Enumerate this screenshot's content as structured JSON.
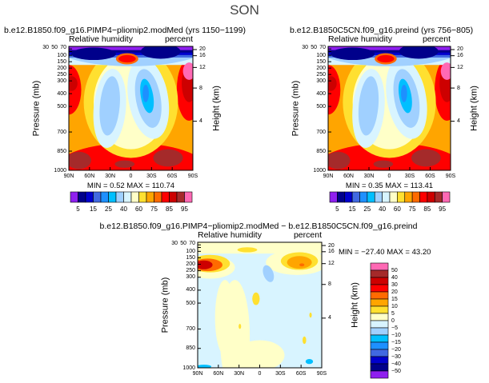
{
  "title": "SON",
  "chart_data": [
    {
      "type": "heatmap",
      "title": "b.e12.B1850.f09_g16.PIMP4−pliomip2.modMed (yrs 1150−1199)",
      "left_label": "Relative humidity",
      "right_label": "percent",
      "ylabel": "Pressure (mb)",
      "y2label": "Height (km)",
      "xticks": [
        "90N",
        "60N",
        "30N",
        "0",
        "30S",
        "60S",
        "90S"
      ],
      "yticks": [
        "30",
        "50",
        "70",
        "100",
        "150",
        "200",
        "250",
        "300",
        "400",
        "500",
        "700",
        "850",
        "1000"
      ],
      "y2ticks": [
        "20",
        "16",
        "12",
        "8",
        "4"
      ],
      "ylim": [
        30,
        1000
      ],
      "minmax": "MIN =    0.52   MAX = 110.74",
      "min": 0.52,
      "max": 110.74,
      "colorbar_labels": [
        "5",
        "15",
        "25",
        "40",
        "60",
        "75",
        "85",
        "95"
      ]
    },
    {
      "type": "heatmap",
      "title": "b.e12.B1850C5CN.f09_g16.preind (yrs 756−805)",
      "left_label": "Relative humidity",
      "right_label": "percent",
      "ylabel": "Pressure (mb)",
      "y2label": "Height (km)",
      "xticks": [
        "90N",
        "60N",
        "30N",
        "0",
        "30S",
        "60S",
        "90S"
      ],
      "yticks": [
        "30",
        "50",
        "70",
        "100",
        "150",
        "200",
        "250",
        "300",
        "400",
        "500",
        "700",
        "850",
        "1000"
      ],
      "y2ticks": [
        "20",
        "16",
        "12",
        "8",
        "4"
      ],
      "ylim": [
        30,
        1000
      ],
      "minmax": "MIN =    0.35   MAX = 113.41",
      "min": 0.35,
      "max": 113.41,
      "colorbar_labels": [
        "5",
        "15",
        "25",
        "40",
        "60",
        "75",
        "85",
        "95"
      ]
    },
    {
      "type": "heatmap",
      "title": "b.e12.B1850.f09_g16.PIMP4−pliomip2.modMed − b.e12.B1850C5CN.f09_g16.preind",
      "left_label": "Relative humidity",
      "right_label": "percent",
      "ylabel": "Pressure (mb)",
      "y2label": "Height (km)",
      "xticks": [
        "90N",
        "60N",
        "30N",
        "0",
        "30S",
        "60S",
        "90S"
      ],
      "yticks": [
        "30",
        "50",
        "70",
        "100",
        "150",
        "200",
        "250",
        "300",
        "400",
        "500",
        "700",
        "850",
        "1000"
      ],
      "y2ticks": [
        "20",
        "16",
        "12",
        "8",
        "4"
      ],
      "ylim": [
        30,
        1000
      ],
      "minmax": "MIN = −27.40   MAX =  43.20",
      "min": -27.4,
      "max": 43.2,
      "colorbar_labels": [
        "50",
        "40",
        "30",
        "20",
        "15",
        "10",
        "5",
        "0",
        "−5",
        "−10",
        "−15",
        "−20",
        "−30",
        "−40",
        "−50"
      ]
    }
  ],
  "colors": {
    "abs": [
      "#8f1fef",
      "#00008b",
      "#0000cd",
      "#4169e1",
      "#1e90ff",
      "#00bfff",
      "#a0d0ff",
      "#d8f4ff",
      "#ffffc8",
      "#ffe030",
      "#ffa500",
      "#ff6a00",
      "#ff0000",
      "#cd0000",
      "#a52a2a",
      "#ff69b4"
    ],
    "diff": [
      "#ff69b4",
      "#a52a2a",
      "#cd0000",
      "#ff0000",
      "#ff6a00",
      "#ffa500",
      "#ffe030",
      "#ffffc8",
      "#d8f4ff",
      "#a0d0ff",
      "#00bfff",
      "#1e90ff",
      "#4169e1",
      "#0000cd",
      "#00008b",
      "#8f1fef"
    ]
  }
}
